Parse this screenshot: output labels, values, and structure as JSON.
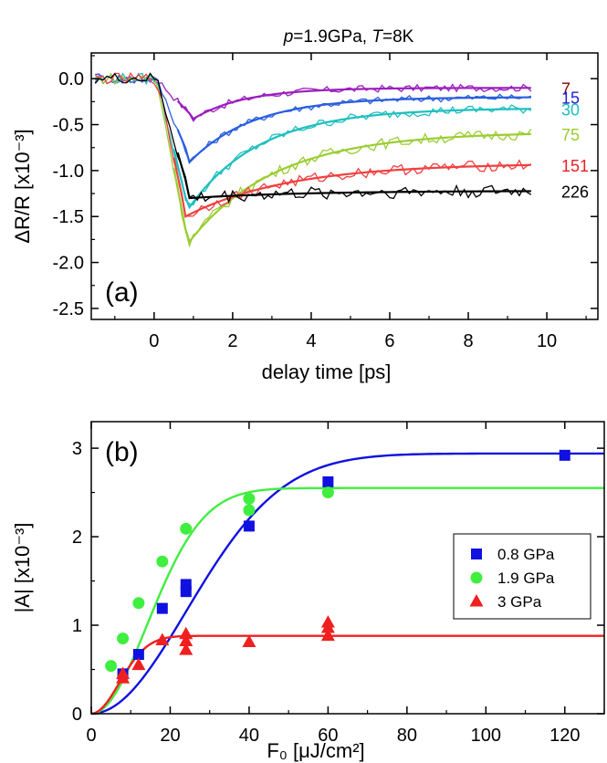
{
  "chart_data": [
    {
      "type": "line",
      "panel_label": "(a)",
      "title_parts": [
        {
          "text": "p",
          "italic": true
        },
        {
          "text": "=1.9GPa, ",
          "italic": false
        },
        {
          "text": "T",
          "italic": true
        },
        {
          "text": "=8K",
          "italic": false
        }
      ],
      "xlabel": "delay time [ps]",
      "ylabel": "ΔR/R [x10⁻³]",
      "xlim": [
        -1.6,
        11.3
      ],
      "ylim": [
        -2.62,
        0.28
      ],
      "xticks": [
        0,
        2,
        4,
        6,
        8,
        10
      ],
      "yticks": [
        0.0,
        -0.5,
        -1.0,
        -1.5,
        -2.0,
        -2.5
      ],
      "ytick_labels": [
        "0.0",
        "-0.5",
        "-1.0",
        "-1.5",
        "-2.0",
        "-2.5"
      ],
      "grid": false,
      "series": [
        {
          "label": "7",
          "color": "#8B0000",
          "line_color": "#9B1FBF",
          "amplitude": 0.4,
          "offset": 0.1,
          "peak_time": 0.95,
          "decay_tau": 1.3,
          "noise": 0.04
        },
        {
          "label": "15",
          "color": "#1F1FD6",
          "line_color": "#2A5FE0",
          "amplitude": 0.86,
          "offset": 0.2,
          "peak_time": 0.9,
          "decay_tau": 1.6,
          "noise": 0.04
        },
        {
          "label": "30",
          "color": "#1FBFBF",
          "line_color": "#1FBFBF",
          "amplitude": 1.38,
          "offset": 0.32,
          "peak_time": 0.85,
          "decay_tau": 1.8,
          "noise": 0.05
        },
        {
          "label": "75",
          "color": "#9ACD32",
          "line_color": "#9ACD32",
          "amplitude": 1.75,
          "offset": 0.58,
          "peak_time": 0.85,
          "decay_tau": 2.2,
          "noise": 0.06
        },
        {
          "label": "151",
          "color": "#E82020",
          "line_color": "#F04040",
          "amplitude": 1.45,
          "offset": 0.92,
          "peak_time": 0.8,
          "decay_tau": 2.6,
          "noise": 0.06
        },
        {
          "label": "226",
          "color": "#000000",
          "line_color": "#000000",
          "amplitude": 1.25,
          "offset": 1.22,
          "peak_time": 0.9,
          "decay_tau": 2.9,
          "noise": 0.07
        }
      ]
    },
    {
      "type": "scatter",
      "panel_label": "(b)",
      "xlabel": "F₀ [μJ/cm²]",
      "ylabel": "|A| [x10⁻³]",
      "xlim": [
        0,
        130
      ],
      "ylim": [
        0,
        3.3
      ],
      "xticks": [
        0,
        20,
        40,
        60,
        80,
        100,
        120
      ],
      "yticks": [
        0,
        1,
        2,
        3
      ],
      "grid": false,
      "legend_position": "right",
      "series": [
        {
          "name": "0.8 GPa",
          "color": "#1010E0",
          "marker": "square",
          "x": [
            8,
            12,
            18,
            24,
            24,
            40,
            60,
            120
          ],
          "y": [
            0.45,
            0.67,
            1.19,
            1.38,
            1.46,
            2.12,
            2.62,
            2.92
          ],
          "fit": {
            "saturation": 2.94,
            "width": 34,
            "power": 2
          }
        },
        {
          "name": "1.9 GPa",
          "color": "#40EE40",
          "marker": "circle",
          "x": [
            5,
            8,
            12,
            18,
            24,
            40,
            40,
            60
          ],
          "y": [
            0.54,
            0.85,
            1.25,
            1.72,
            2.09,
            2.43,
            2.3,
            2.5
          ],
          "fit": {
            "saturation": 2.55,
            "width": 20,
            "power": 2
          }
        },
        {
          "name": "3 GPa",
          "color": "#F02020",
          "marker": "triangle",
          "x": [
            8,
            8,
            12,
            18,
            24,
            24,
            24,
            40,
            60,
            60,
            60
          ],
          "y": [
            0.4,
            0.45,
            0.55,
            0.83,
            0.72,
            0.82,
            0.9,
            0.81,
            0.88,
            0.97,
            1.03
          ],
          "fit": {
            "saturation": 0.88,
            "width": 10,
            "power": 2
          }
        }
      ]
    }
  ]
}
